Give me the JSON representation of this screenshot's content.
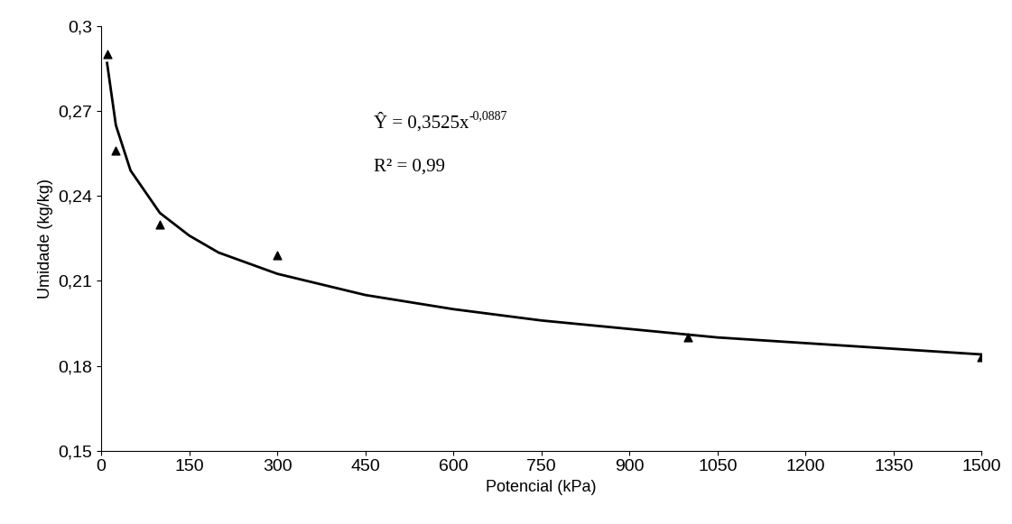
{
  "chart_data": {
    "type": "scatter",
    "x_label": "Potencial (kPa)",
    "y_label": "Umidade (kg/kg)",
    "equation": "Ŷ = 0,3525x",
    "equation_exponent": "-0,0887",
    "r_squared": "R² = 0,99",
    "series": [
      {
        "type": "scatter",
        "color": "#000000",
        "marker": "triangle",
        "x": [
          10,
          25,
          100,
          300,
          1000,
          1500
        ],
        "values": [
          0.29,
          0.256,
          0.23,
          0.219,
          0.19,
          0.183
        ]
      },
      {
        "type": "line",
        "color": "#000000",
        "line_style": "solid",
        "x": [
          10,
          25,
          50,
          100,
          150,
          200,
          300,
          450,
          600,
          750,
          900,
          1050,
          1200,
          1350,
          1500
        ],
        "values": [
          0.287,
          0.265,
          0.249,
          0.234,
          0.226,
          0.22,
          0.2125,
          0.205,
          0.2,
          0.196,
          0.193,
          0.19,
          0.188,
          0.186,
          0.184
        ]
      }
    ],
    "xlim": [
      0,
      1500
    ],
    "xticks": [
      0,
      150,
      300,
      450,
      600,
      750,
      900,
      1050,
      1200,
      1350,
      1500
    ],
    "ylim": [
      0.15,
      0.3
    ],
    "yticks": [
      {
        "value": 0.15,
        "label": "0,15"
      },
      {
        "value": 0.18,
        "label": "0,18"
      },
      {
        "value": 0.21,
        "label": "0,21"
      },
      {
        "value": 0.24,
        "label": "0,24"
      },
      {
        "value": 0.27,
        "label": "0,27"
      },
      {
        "value": 0.3,
        "label": "0,3"
      }
    ],
    "grid": false
  }
}
